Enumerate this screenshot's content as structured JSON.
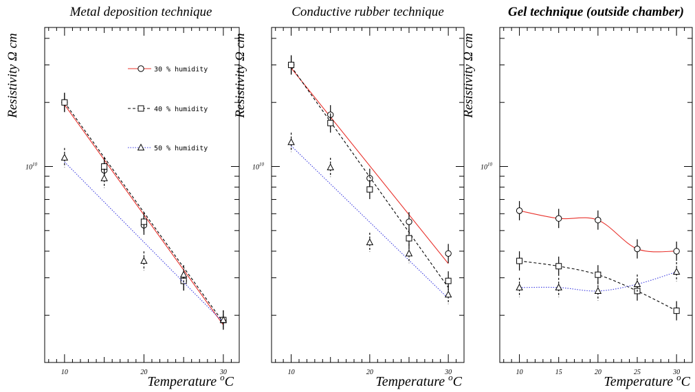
{
  "chart_data": [
    {
      "type": "line",
      "title": "Metal deposition technique",
      "xlabel": "Temperature",
      "xlabel_sup": "o",
      "xlabel_unit": "C",
      "ylabel": "Resistivity Ω cm",
      "y_scale": "log",
      "ylim": [
        1200000000.0,
        45000000000.0
      ],
      "xlim": [
        7.5,
        32
      ],
      "x_tick_labels": [
        "10",
        "20",
        "30"
      ],
      "y_tick_labels": [
        {
          "base": "10",
          "exp": "10"
        }
      ],
      "legend_position": "top-right",
      "series": [
        {
          "name": "30 % humidity",
          "marker": "circle",
          "line": "solid",
          "color": "#e8302a",
          "x": [
            10,
            15,
            20,
            25,
            30
          ],
          "y": [
            20000000000.0,
            9600000000.0,
            5300000000.0,
            2900000000.0,
            1900000000.0
          ],
          "fit": [
            [
              10,
              19500000000.0
            ],
            [
              30,
              1800000000.0
            ]
          ]
        },
        {
          "name": "40 % humidity",
          "marker": "square",
          "line": "dashed",
          "color": "#000000",
          "x": [
            10,
            15,
            20,
            25,
            30
          ],
          "y": [
            20000000000.0,
            10000000000.0,
            5500000000.0,
            2900000000.0,
            1900000000.0
          ],
          "fit": [
            [
              10,
              20000000000.0
            ],
            [
              30,
              1850000000.0
            ]
          ]
        },
        {
          "name": "50 % humidity",
          "marker": "triangle",
          "line": "dotted",
          "color": "#3a3ae0",
          "x": [
            10,
            15,
            20,
            25,
            30
          ],
          "y": [
            11000000000.0,
            8800000000.0,
            3600000000.0,
            3100000000.0,
            1900000000.0
          ],
          "fit": [
            [
              10,
              10500000000.0
            ],
            [
              30,
              1850000000.0
            ]
          ]
        }
      ]
    },
    {
      "type": "line",
      "title": "Conductive rubber technique",
      "xlabel": "Temperature",
      "xlabel_sup": "o",
      "xlabel_unit": "C",
      "ylabel": "Resistivity Ω cm",
      "y_scale": "log",
      "ylim": [
        1200000000.0,
        45000000000.0
      ],
      "xlim": [
        7.5,
        32
      ],
      "x_tick_labels": [
        "10",
        "20",
        "30"
      ],
      "y_tick_labels": [
        {
          "base": "10",
          "exp": "10"
        }
      ],
      "series": [
        {
          "name": "30 % humidity",
          "marker": "circle",
          "line": "solid",
          "color": "#e8302a",
          "x": [
            10,
            15,
            20,
            25,
            30
          ],
          "y": [
            30000000000.0,
            17500000000.0,
            8800000000.0,
            5500000000.0,
            3900000000.0
          ],
          "fit": [
            [
              10,
              29000000000.0
            ],
            [
              30,
              3500000000.0
            ]
          ]
        },
        {
          "name": "40 % humidity",
          "marker": "square",
          "line": "dashed",
          "color": "#000000",
          "x": [
            10,
            15,
            20,
            25,
            30
          ],
          "y": [
            30000000000.0,
            16000000000.0,
            7800000000.0,
            4600000000.0,
            2900000000.0
          ],
          "fit": [
            [
              10,
              29500000000.0
            ],
            [
              30,
              2700000000.0
            ]
          ]
        },
        {
          "name": "50 % humidity",
          "marker": "triangle",
          "line": "dotted",
          "color": "#3a3ae0",
          "x": [
            10,
            15,
            20,
            25,
            30
          ],
          "y": [
            13000000000.0,
            9900000000.0,
            4400000000.0,
            3900000000.0,
            2500000000.0
          ],
          "fit": [
            [
              10,
              12500000000.0
            ],
            [
              30,
              2400000000.0
            ]
          ]
        }
      ]
    },
    {
      "type": "line",
      "title": "Gel technique (outside chamber)",
      "xlabel": "Temperature",
      "xlabel_sup": "o",
      "xlabel_unit": "C",
      "ylabel": "Resistivity Ω cm",
      "y_scale": "log",
      "ylim": [
        1200000000.0,
        45000000000.0
      ],
      "xlim": [
        7.5,
        32
      ],
      "x_tick_labels": [
        "10",
        "15",
        "20",
        "25",
        "30"
      ],
      "y_tick_labels": [
        {
          "base": "10",
          "exp": "10"
        }
      ],
      "series": [
        {
          "name": "30 % humidity",
          "marker": "circle",
          "line": "solid",
          "color": "#e8302a",
          "x": [
            10,
            15,
            20,
            25,
            30
          ],
          "y": [
            6200000000.0,
            5700000000.0,
            5600000000.0,
            4100000000.0,
            4000000000.0
          ]
        },
        {
          "name": "40 % humidity",
          "marker": "square",
          "line": "dashed",
          "color": "#000000",
          "x": [
            10,
            15,
            20,
            25,
            30
          ],
          "y": [
            3600000000.0,
            3400000000.0,
            3100000000.0,
            2600000000.0,
            2100000000.0
          ]
        },
        {
          "name": "50 % humidity",
          "marker": "triangle",
          "line": "dotted",
          "color": "#3a3ae0",
          "x": [
            10,
            15,
            20,
            25,
            30
          ],
          "y": [
            2700000000.0,
            2700000000.0,
            2600000000.0,
            2800000000.0,
            3200000000.0
          ]
        }
      ]
    }
  ]
}
